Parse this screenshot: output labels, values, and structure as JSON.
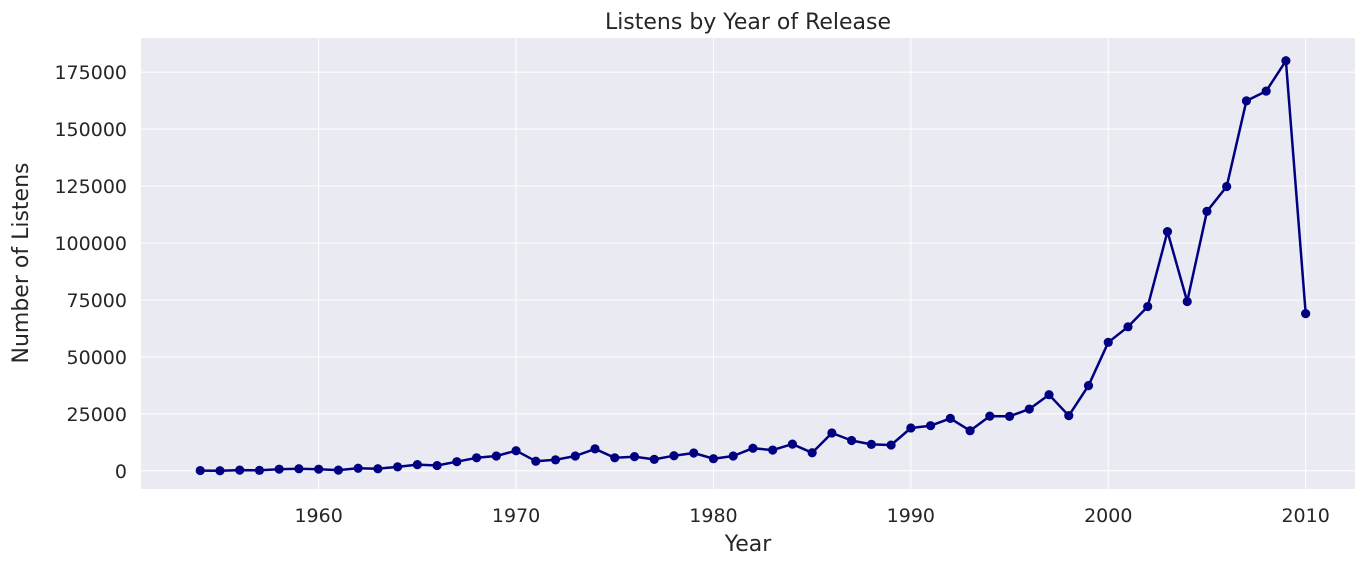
{
  "chart_data": {
    "type": "line",
    "title": "Listens by Year of Release",
    "xlabel": "Year",
    "ylabel": "Number of Listens",
    "xlim": [
      1951,
      2012.5
    ],
    "ylim": [
      -8000,
      190000
    ],
    "xticks": [
      1960,
      1970,
      1980,
      1990,
      2000,
      2010
    ],
    "yticks": [
      0,
      25000,
      50000,
      75000,
      100000,
      125000,
      150000,
      175000
    ],
    "grid": true,
    "legend": "none",
    "series": [
      {
        "color": "#000080",
        "marker": "circle",
        "x": [
          1954,
          1955,
          1956,
          1957,
          1958,
          1959,
          1960,
          1961,
          1962,
          1963,
          1964,
          1965,
          1966,
          1967,
          1968,
          1969,
          1970,
          1971,
          1972,
          1973,
          1974,
          1975,
          1976,
          1977,
          1978,
          1979,
          1980,
          1981,
          1982,
          1983,
          1984,
          1985,
          1986,
          1987,
          1988,
          1989,
          1990,
          1991,
          1992,
          1993,
          1994,
          1995,
          1996,
          1997,
          1998,
          1999,
          2000,
          2001,
          2002,
          2003,
          2004,
          2005,
          2006,
          2007,
          2008,
          2009,
          2010
        ],
        "y": [
          100,
          0,
          300,
          200,
          700,
          900,
          700,
          300,
          1100,
          900,
          1700,
          2700,
          2300,
          4000,
          5700,
          6500,
          8800,
          4200,
          4800,
          6500,
          9600,
          5700,
          6200,
          5000,
          6600,
          7800,
          5300,
          6500,
          9900,
          9100,
          11700,
          7900,
          16600,
          13300,
          11600,
          11300,
          18800,
          19800,
          23000,
          17600,
          24000,
          23900,
          27100,
          33400,
          24200,
          37400,
          56400,
          63200,
          72100,
          105000,
          74300,
          113900,
          124800,
          162400,
          166700,
          180000,
          69000
        ]
      }
    ],
    "styles": {
      "plot_bg": "#eaeaf2",
      "grid_color": "#ffffff",
      "text_color": "#262626"
    }
  }
}
